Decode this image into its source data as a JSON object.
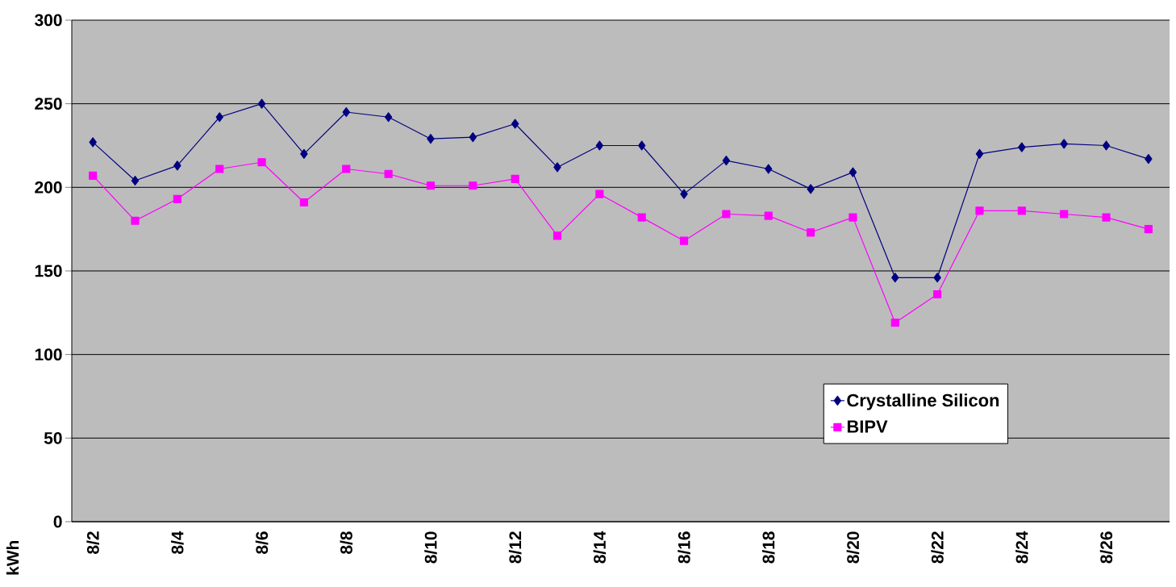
{
  "chart_data": {
    "type": "line",
    "ylabel": "kWh",
    "categories": [
      "8/2",
      null,
      "8/4",
      null,
      "8/6",
      null,
      "8/8",
      null,
      "8/10",
      null,
      "8/12",
      null,
      "8/14",
      null,
      "8/16",
      null,
      "8/18",
      null,
      "8/20",
      null,
      "8/22",
      null,
      "8/24",
      null,
      "8/26",
      null
    ],
    "series": [
      {
        "name": "Crystalline Silicon",
        "color": "#000080",
        "marker": "diamond",
        "values": [
          227,
          204,
          213,
          242,
          250,
          220,
          245,
          242,
          229,
          230,
          238,
          212,
          225,
          225,
          196,
          216,
          211,
          199,
          209,
          146,
          146,
          220,
          224,
          226,
          225,
          217
        ]
      },
      {
        "name": "BIPV",
        "color": "#ff00ff",
        "marker": "square",
        "values": [
          207,
          180,
          193,
          211,
          215,
          191,
          211,
          208,
          201,
          201,
          205,
          171,
          196,
          182,
          168,
          184,
          183,
          173,
          182,
          119,
          136,
          186,
          186,
          184,
          182,
          175
        ]
      }
    ],
    "ylim": [
      0,
      300
    ],
    "yticks": [
      0,
      50,
      100,
      150,
      200,
      250,
      300
    ],
    "grid": "y",
    "legend": "bottom right",
    "line_style": "solid"
  }
}
